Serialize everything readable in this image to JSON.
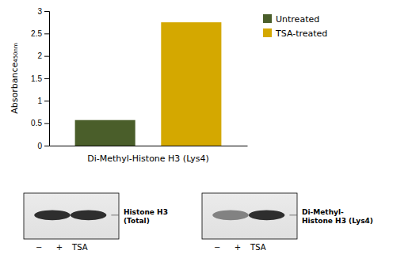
{
  "chart_data": {
    "type": "bar",
    "categories": [
      "Untreated",
      "TSA-treated"
    ],
    "values": [
      0.57,
      2.75
    ],
    "colors": [
      "#4a5e2a",
      "#d4a800"
    ],
    "xlabel": "Di-Methyl-Histone H3 (Lys4)",
    "ylabel": "Absorbance₄₅₀ₙₘ",
    "ylim": [
      0,
      3
    ],
    "yticks": [
      0,
      0.5,
      1,
      1.5,
      2,
      2.5,
      3
    ],
    "tick_labels": "y",
    "legend": "upper right",
    "grid": false,
    "annotations": [
      {
        "text": "Histone H3\n(Total)",
        "lanes": [
          "−",
          "+",
          "TSA"
        ],
        "colors": [
          "#1a1a1a",
          "#1a1a1a"
        ]
      },
      {
        "text": "Di-Methyl-\nHistone H3 (Lys4)",
        "lanes": [
          "−",
          "+",
          "TSA"
        ],
        "colors": [
          "#777777",
          "#1a1a1a"
        ]
      }
    ]
  }
}
